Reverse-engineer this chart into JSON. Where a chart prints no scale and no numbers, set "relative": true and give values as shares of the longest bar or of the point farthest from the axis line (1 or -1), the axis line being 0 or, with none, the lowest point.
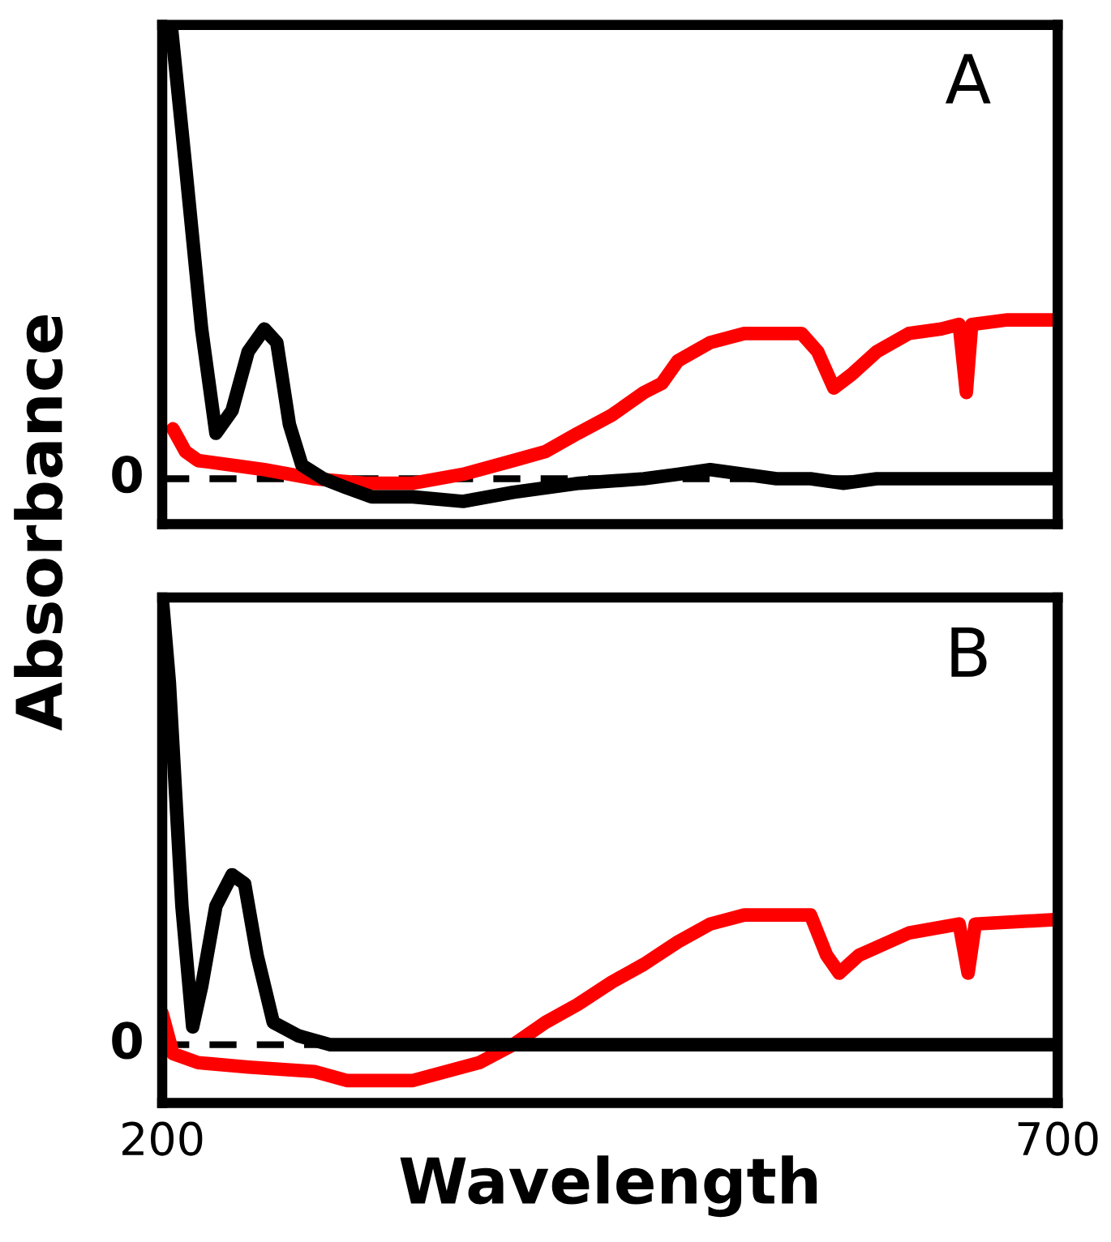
{
  "chart_data": [
    {
      "type": "line",
      "relative": true,
      "ylabel": "Absorbance",
      "xlim": [
        200,
        700
      ],
      "tick_labels": false,
      "annotations": [
        "A"
      ],
      "ref_lines": [
        {
          "axis": "y",
          "value": 0,
          "label": "0",
          "color": "#000000",
          "line_style": "dashed"
        }
      ],
      "series": [
        {
          "color": "#000000",
          "x": [
            205,
            213,
            222,
            230,
            239,
            248,
            257,
            264,
            271,
            278,
            290,
            303,
            317,
            340,
            368,
            396,
            433,
            469,
            488,
            506,
            525,
            543,
            562,
            580,
            599,
            635,
            700
          ],
          "values": [
            1.0,
            0.69,
            0.33,
            0.1,
            0.15,
            0.28,
            0.33,
            0.3,
            0.12,
            0.03,
            0,
            -0.02,
            -0.04,
            -0.04,
            -0.05,
            -0.03,
            -0.01,
            0,
            0.01,
            0.02,
            0.01,
            0,
            0,
            -0.01,
            0,
            0,
            0
          ]
        },
        {
          "color": "#ff0000",
          "x": [
            206,
            213,
            220,
            239,
            257,
            285,
            313,
            340,
            368,
            396,
            414,
            432,
            451,
            469,
            479,
            488,
            506,
            525,
            543,
            557,
            566,
            575,
            585,
            599,
            617,
            635,
            645,
            649,
            652,
            672,
            700
          ],
          "values": [
            0.11,
            0.06,
            0.04,
            0.03,
            0.02,
            0,
            -0.01,
            -0.01,
            0.01,
            0.04,
            0.06,
            0.1,
            0.14,
            0.19,
            0.21,
            0.26,
            0.3,
            0.32,
            0.32,
            0.32,
            0.28,
            0.2,
            0.23,
            0.28,
            0.32,
            0.33,
            0.34,
            0.19,
            0.34,
            0.35,
            0.35
          ]
        }
      ]
    },
    {
      "type": "line",
      "relative": true,
      "xlabel": "Wavelength",
      "xlim": [
        200,
        700
      ],
      "xticks": [
        200,
        700
      ],
      "tick_labels": "x",
      "annotations": [
        "B"
      ],
      "ref_lines": [
        {
          "axis": "y",
          "value": 0,
          "label": "0",
          "color": "#000000",
          "line_style": "dashed"
        }
      ],
      "series": [
        {
          "color": "#000000",
          "x": [
            200,
            204,
            211,
            217,
            222,
            230,
            239,
            246,
            253,
            262,
            276,
            294,
            700
          ],
          "values": [
            1.0,
            0.81,
            0.31,
            0.04,
            0.13,
            0.31,
            0.38,
            0.36,
            0.2,
            0.05,
            0.02,
            0,
            0
          ]
        },
        {
          "color": "#ff0000",
          "x": [
            200,
            206,
            220,
            248,
            285,
            303,
            340,
            377,
            396,
            414,
            432,
            451,
            469,
            488,
            506,
            525,
            562,
            571,
            578,
            589,
            617,
            645,
            650,
            654,
            700
          ],
          "values": [
            0.07,
            -0.02,
            -0.04,
            -0.05,
            -0.06,
            -0.08,
            -0.08,
            -0.04,
            0,
            0.05,
            0.09,
            0.14,
            0.18,
            0.23,
            0.27,
            0.29,
            0.29,
            0.2,
            0.16,
            0.2,
            0.25,
            0.27,
            0.16,
            0.27,
            0.28
          ]
        }
      ]
    }
  ]
}
